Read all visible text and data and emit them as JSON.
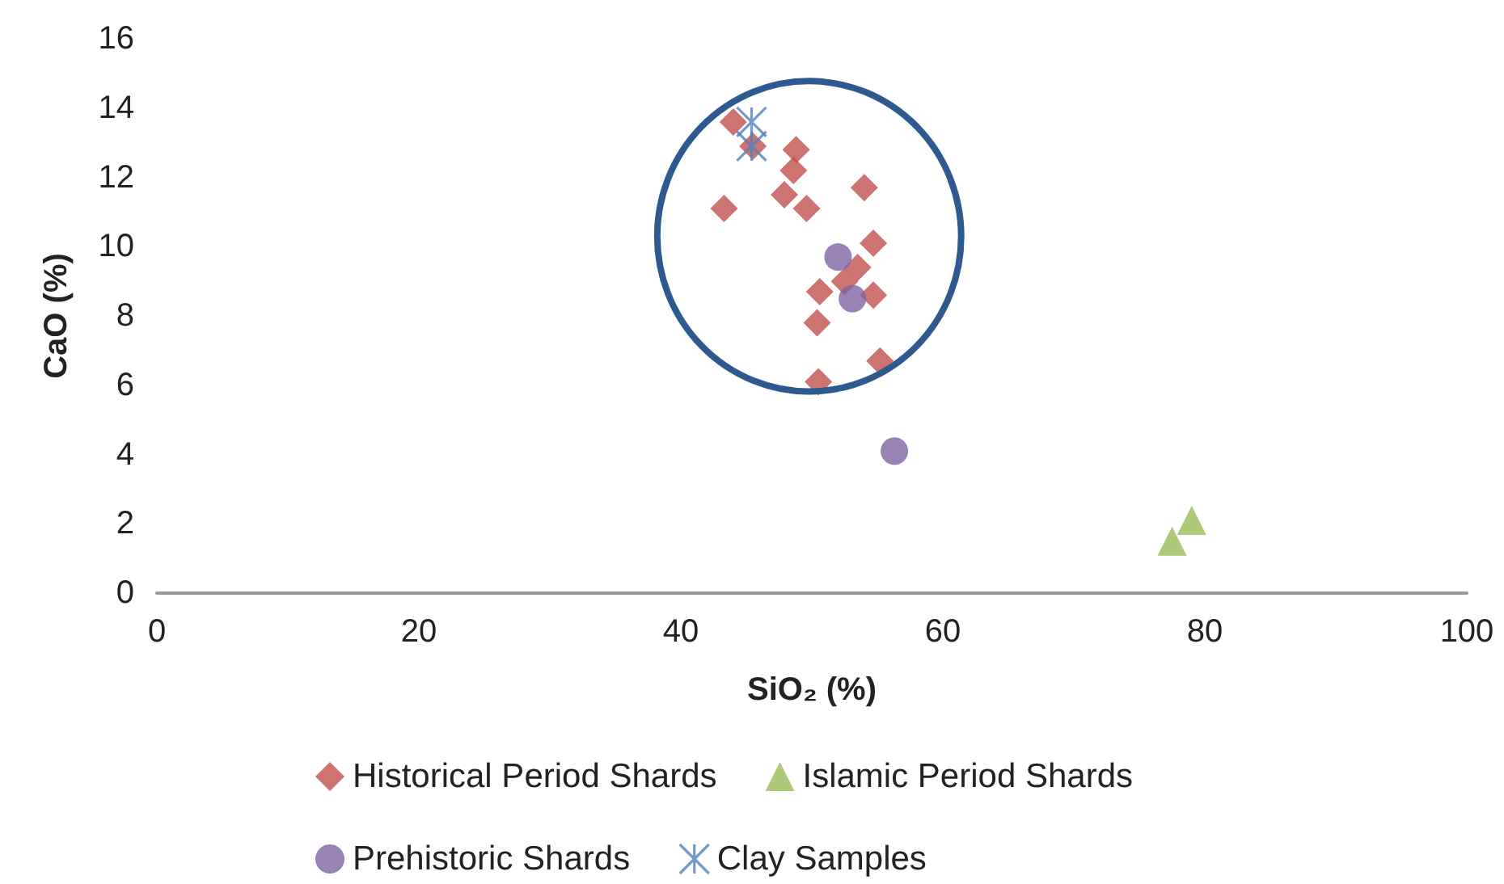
{
  "chart_data": {
    "type": "scatter",
    "xlabel": "SiO₂ (%)",
    "ylabel": "CaO (%)",
    "xlim": [
      0,
      100
    ],
    "xticks": [
      0,
      20,
      40,
      60,
      80,
      100
    ],
    "ylim": [
      0,
      16
    ],
    "yticks": [
      0,
      2,
      4,
      6,
      8,
      10,
      12,
      14,
      16
    ],
    "grid": false,
    "legend": "bottom",
    "series": [
      {
        "name": "Historical Period Shards",
        "color": "#c0504d",
        "marker": "diamond",
        "x": [
          44,
          45.5,
          48.8,
          48.6,
          54,
          43.3,
          47.9,
          49.6,
          54.7,
          53.5,
          52.5,
          54.7,
          50.6,
          50.4,
          55.2,
          50.5
        ],
        "values": [
          13.6,
          12.9,
          12.8,
          12.2,
          11.7,
          11.1,
          11.5,
          11.1,
          10.1,
          9.4,
          9,
          8.6,
          8.7,
          7.8,
          6.7,
          6.1
        ]
      },
      {
        "name": "Islamic Period Shards",
        "color": "#9bbb59",
        "marker": "triangle",
        "x": [
          79,
          77.5
        ],
        "values": [
          2.1,
          1.5
        ]
      },
      {
        "name": "Prehistoric Shards",
        "color": "#8064a2",
        "marker": "circle",
        "x": [
          52,
          53.1,
          56.3
        ],
        "values": [
          9.7,
          8.5,
          4.1
        ]
      },
      {
        "name": "Clay Samples",
        "color": "#4f81bd",
        "marker": "cross",
        "x": [
          45.4,
          45.4
        ],
        "values": [
          13.6,
          12.9
        ]
      }
    ]
  }
}
